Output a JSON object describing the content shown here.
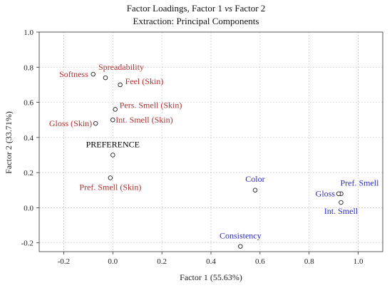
{
  "chart_data": {
    "type": "scatter",
    "title": "Factor Loadings, Factor 1",
    "title_vs": "vs",
    "title_suffix": "Factor 2",
    "subtitle": "Extraction: Principal Components",
    "xlabel": "Factor 1 (55.63%)",
    "ylabel": "Factor 2 (33.71%)",
    "xlim": [
      -0.3,
      1.1
    ],
    "ylim": [
      -0.25,
      1.0
    ],
    "xticks": [
      "-0.2",
      "0.0",
      "0.2",
      "0.4",
      "0.6",
      "0.8",
      "1.0"
    ],
    "xtick_values": [
      -0.2,
      0.0,
      0.2,
      0.4,
      0.6,
      0.8,
      1.0
    ],
    "yticks": [
      "-0.2",
      "0.0",
      "0.2",
      "0.4",
      "0.6",
      "0.8",
      "1.0"
    ],
    "ytick_values": [
      -0.2,
      0.0,
      0.2,
      0.4,
      0.6,
      0.8,
      1.0
    ],
    "grid": true,
    "colors": {
      "skin": "#b03030",
      "product": "#2a2ac8",
      "preference": "#000000"
    },
    "points": [
      {
        "label": "Spreadability",
        "x": -0.03,
        "y": 0.74,
        "group": "skin",
        "anchor": "start",
        "dx": -10,
        "dy": -11
      },
      {
        "label": "Softness",
        "x": -0.08,
        "y": 0.76,
        "group": "skin",
        "anchor": "end",
        "dx": -7,
        "dy": 4
      },
      {
        "label": "Feel (Skin)",
        "x": 0.03,
        "y": 0.7,
        "group": "skin",
        "anchor": "start",
        "dx": 7,
        "dy": -1
      },
      {
        "label": "Pers. Smell (Skin)",
        "x": 0.01,
        "y": 0.56,
        "group": "skin",
        "anchor": "start",
        "dx": 6,
        "dy": -2
      },
      {
        "label": "Int. Smell (Skin)",
        "x": 0.0,
        "y": 0.5,
        "group": "skin",
        "anchor": "start",
        "dx": 4,
        "dy": 4
      },
      {
        "label": "Gloss (Skin)",
        "x": -0.07,
        "y": 0.48,
        "group": "skin",
        "anchor": "end",
        "dx": -5,
        "dy": 4
      },
      {
        "label": "PREFERENCE",
        "x": 0.0,
        "y": 0.3,
        "group": "preference",
        "anchor": "middle",
        "dx": 0,
        "dy": -11
      },
      {
        "label": "Pref. Smell (Skin)",
        "x": -0.01,
        "y": 0.17,
        "group": "skin",
        "anchor": "middle",
        "dx": 0,
        "dy": 17
      },
      {
        "label": "Color",
        "x": 0.58,
        "y": 0.1,
        "group": "product",
        "anchor": "middle",
        "dx": 0,
        "dy": -12
      },
      {
        "label": "Pref. Smell",
        "x": 0.93,
        "y": 0.08,
        "group": "product",
        "anchor": "start",
        "dx": -1,
        "dy": -11
      },
      {
        "label": "Gloss",
        "x": 0.92,
        "y": 0.08,
        "group": "product",
        "anchor": "end",
        "dx": -5,
        "dy": 4
      },
      {
        "label": "Int. Smell",
        "x": 0.93,
        "y": 0.03,
        "group": "product",
        "anchor": "middle",
        "dx": 0,
        "dy": 16
      },
      {
        "label": "Consistency",
        "x": 0.52,
        "y": -0.22,
        "group": "product",
        "anchor": "middle",
        "dx": 0,
        "dy": -11
      }
    ]
  }
}
